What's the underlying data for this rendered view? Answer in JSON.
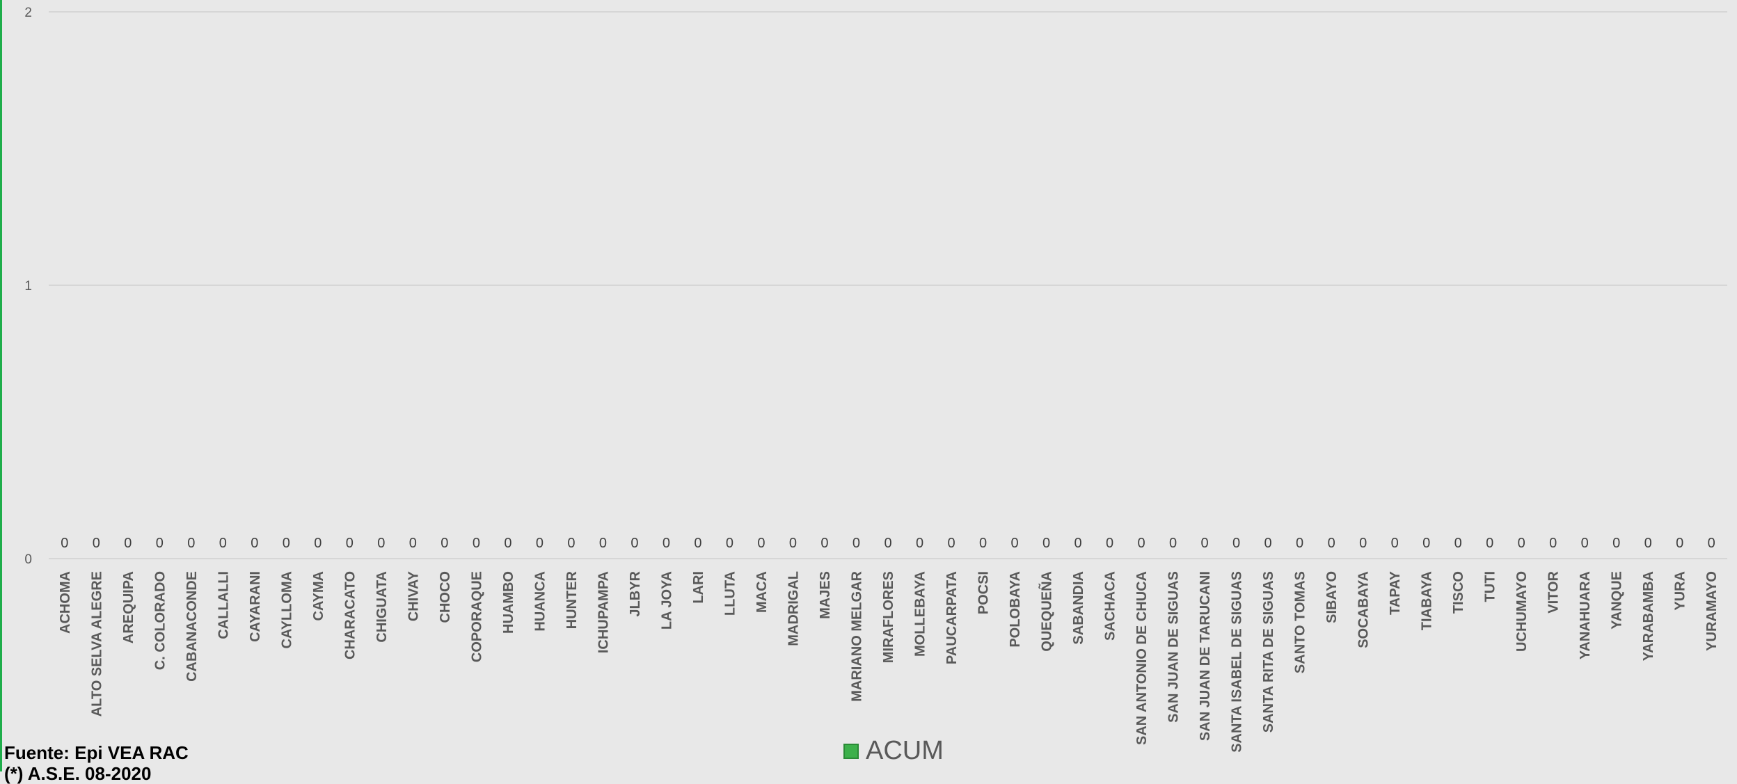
{
  "chart_data": {
    "type": "bar",
    "categories": [
      "ACHOMA",
      "ALTO SELVA ALEGRE",
      "AREQUIPA",
      "C. COLORADO",
      "CABANACONDE",
      "CALLALLI",
      "CAYARANI",
      "CAYLLOMA",
      "CAYMA",
      "CHARACATO",
      "CHIGUATA",
      "CHIVAY",
      "CHOCO",
      "COPORAQUE",
      "HUAMBO",
      "HUANCA",
      "HUNTER",
      "ICHUPAMPA",
      "JLBYR",
      "LA JOYA",
      "LARI",
      "LLUTA",
      "MACA",
      "MADRIGAL",
      "MAJES",
      "MARIANO MELGAR",
      "MIRAFLORES",
      "MOLLEBAYA",
      "PAUCARPATA",
      "POCSI",
      "POLOBAYA",
      "QUEQUEÑA",
      "SABANDIA",
      "SACHACA",
      "SAN ANTONIO DE CHUCA",
      "SAN JUAN DE SIGUAS",
      "SAN JUAN DE TARUCANI",
      "SANTA ISABEL DE SIGUAS",
      "SANTA RITA DE SIGUAS",
      "SANTO TOMAS",
      "SIBAYO",
      "SOCABAYA",
      "TAPAY",
      "TIABAYA",
      "TISCO",
      "TUTI",
      "UCHUMAYO",
      "VITOR",
      "YANAHUARA",
      "YANQUE",
      "YARABAMBA",
      "YURA",
      "YURAMAYO"
    ],
    "series": [
      {
        "name": "ACUM",
        "color": "#3cb04a",
        "values": [
          0,
          0,
          0,
          0,
          0,
          0,
          0,
          0,
          0,
          0,
          0,
          0,
          0,
          0,
          0,
          0,
          0,
          0,
          0,
          0,
          0,
          0,
          0,
          0,
          0,
          0,
          0,
          0,
          0,
          0,
          0,
          0,
          0,
          0,
          0,
          0,
          0,
          0,
          0,
          0,
          0,
          0,
          0,
          0,
          0,
          0,
          0,
          0,
          0,
          0,
          0,
          0,
          0
        ]
      }
    ],
    "ylim": [
      0,
      2
    ],
    "yticks": [
      "0",
      "1",
      "2"
    ],
    "grid": true,
    "legend_position": "bottom"
  },
  "footer": {
    "source": "Fuente: Epi VEA RAC",
    "note": "(*) A.S.E. 08-2020"
  },
  "legend": {
    "label": "ACUM"
  }
}
